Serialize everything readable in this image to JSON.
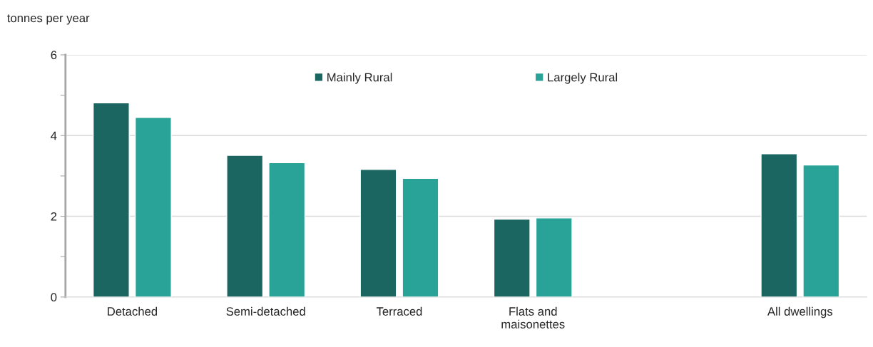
{
  "chart_data": {
    "type": "bar",
    "ylabel": "tonnes per year",
    "categories": [
      "Detached",
      "Semi-detached",
      "Terraced",
      "Flats and\nmaisonettes",
      null,
      "All dwellings"
    ],
    "series": [
      {
        "name": "Mainly Rural",
        "color": "#1b6660",
        "values": [
          4.81,
          3.51,
          3.16,
          1.93,
          null,
          3.55
        ]
      },
      {
        "name": "Largely Rural",
        "color": "#29a397",
        "values": [
          4.45,
          3.33,
          2.94,
          1.96,
          null,
          3.27
        ]
      }
    ],
    "ylim": [
      0,
      6
    ],
    "yticks": [
      0,
      {
        "value": 1,
        "label": null
      },
      2,
      {
        "value": 3,
        "label": null
      },
      4,
      {
        "value": 5,
        "label": null
      },
      6
    ],
    "grid": "y",
    "legend": "top"
  }
}
